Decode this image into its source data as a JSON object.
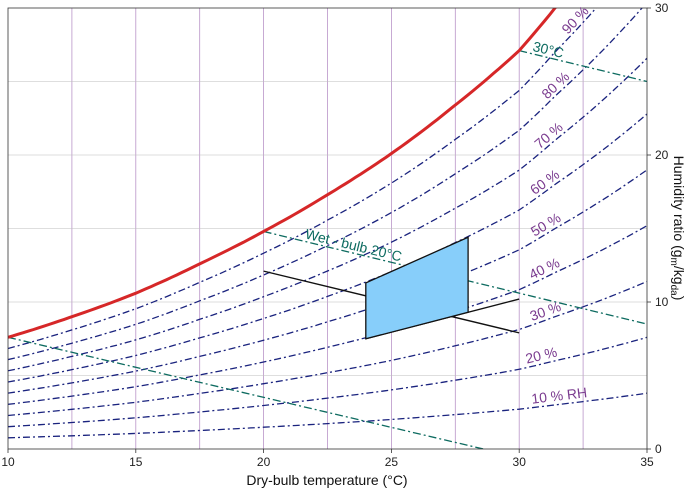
{
  "chart_data": {
    "type": "line",
    "title": "",
    "xlabel": "Dry-bulb temperature (°C)",
    "ylabel_main": "Humidity ratio (g",
    "ylabel_sub1": "m",
    "ylabel_mid": "/kg",
    "ylabel_sub2": "da",
    "ylabel_end": ")",
    "xlim": [
      10,
      35
    ],
    "ylim": [
      0,
      30
    ],
    "x_ticks": [
      10,
      15,
      20,
      25,
      30,
      35
    ],
    "x_tick_labels": [
      "10",
      "15",
      "20",
      "25",
      "30",
      "35"
    ],
    "y_ticks": [
      0,
      10,
      20,
      30
    ],
    "y_tick_labels": [
      "0",
      "10",
      "20",
      "30"
    ],
    "minor_x_grid": [
      12.5,
      17.5,
      22.5,
      27.5,
      32.5
    ],
    "minor_y_grid": [
      5,
      15,
      25
    ],
    "grid": true,
    "saturation_curve": {
      "name": "100 % RH",
      "color": "#d62728",
      "x": [
        10,
        12.5,
        15,
        17.5,
        20,
        22.5,
        25,
        27.5,
        30,
        31.4
      ],
      "y": [
        7.6,
        9.0,
        10.6,
        12.6,
        14.8,
        17.3,
        20.1,
        23.4,
        27.1,
        30.0
      ]
    },
    "rh_curves": [
      {
        "label": "10 % RH",
        "rh": 10
      },
      {
        "label": "20 %",
        "rh": 20
      },
      {
        "label": "30 %",
        "rh": 30
      },
      {
        "label": "40 %",
        "rh": 40
      },
      {
        "label": "50 %",
        "rh": 50
      },
      {
        "label": "60 %",
        "rh": 60
      },
      {
        "label": "70 %",
        "rh": 70
      },
      {
        "label": "80 %",
        "rh": 80
      },
      {
        "label": "90 %",
        "rh": 90
      }
    ],
    "wet_bulb_lines": [
      {
        "label": "Wet - bulb 20°C",
        "x": [
          20,
          35
        ],
        "y": [
          14.8,
          8.5
        ]
      },
      {
        "label": "30°C",
        "x": [
          30,
          35
        ],
        "y": [
          27.1,
          25.0
        ]
      },
      {
        "label": "",
        "x": [
          10,
          28.6
        ],
        "y": [
          7.6,
          0
        ]
      }
    ],
    "comfort_zone": {
      "polygon_x": [
        24,
        28,
        28,
        24
      ],
      "polygon_y": [
        7.5,
        9.3,
        14.4,
        11.3
      ],
      "fill": "#87cefa"
    },
    "comfort_bounds": [
      {
        "x": [
          20,
          30
        ],
        "y": [
          12.1,
          7.9
        ]
      },
      {
        "x": [
          24,
          30
        ],
        "y": [
          7.5,
          10.2
        ]
      }
    ]
  }
}
